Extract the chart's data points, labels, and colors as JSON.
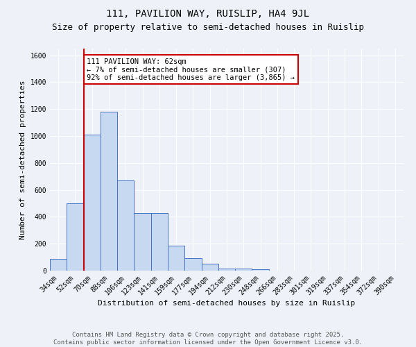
{
  "title": "111, PAVILION WAY, RUISLIP, HA4 9JL",
  "subtitle": "Size of property relative to semi-detached houses in Ruislip",
  "xlabel": "Distribution of semi-detached houses by size in Ruislip",
  "ylabel": "Number of semi-detached properties",
  "categories": [
    "34sqm",
    "52sqm",
    "70sqm",
    "88sqm",
    "106sqm",
    "123sqm",
    "141sqm",
    "159sqm",
    "177sqm",
    "194sqm",
    "212sqm",
    "230sqm",
    "248sqm",
    "266sqm",
    "283sqm",
    "301sqm",
    "319sqm",
    "337sqm",
    "354sqm",
    "372sqm",
    "390sqm"
  ],
  "values": [
    90,
    500,
    1010,
    1180,
    670,
    430,
    430,
    185,
    95,
    50,
    15,
    18,
    10,
    0,
    0,
    0,
    0,
    0,
    0,
    0,
    0
  ],
  "bar_color": "#c6d9f0",
  "bar_edge_color": "#4472c4",
  "red_line_x": 1.5,
  "annotation_text": "111 PAVILION WAY: 62sqm\n← 7% of semi-detached houses are smaller (307)\n92% of semi-detached houses are larger (3,865) →",
  "annotation_box_color": "#ffffff",
  "annotation_box_edge_color": "#cc0000",
  "vline_color": "#cc0000",
  "ylim": [
    0,
    1650
  ],
  "yticks": [
    0,
    200,
    400,
    600,
    800,
    1000,
    1200,
    1400,
    1600
  ],
  "footer_line1": "Contains HM Land Registry data © Crown copyright and database right 2025.",
  "footer_line2": "Contains public sector information licensed under the Open Government Licence v3.0.",
  "background_color": "#eef2f8",
  "grid_color": "#ffffff",
  "title_fontsize": 10,
  "subtitle_fontsize": 9,
  "axis_label_fontsize": 8,
  "tick_fontsize": 7,
  "annotation_fontsize": 7.5,
  "footer_fontsize": 6.5
}
